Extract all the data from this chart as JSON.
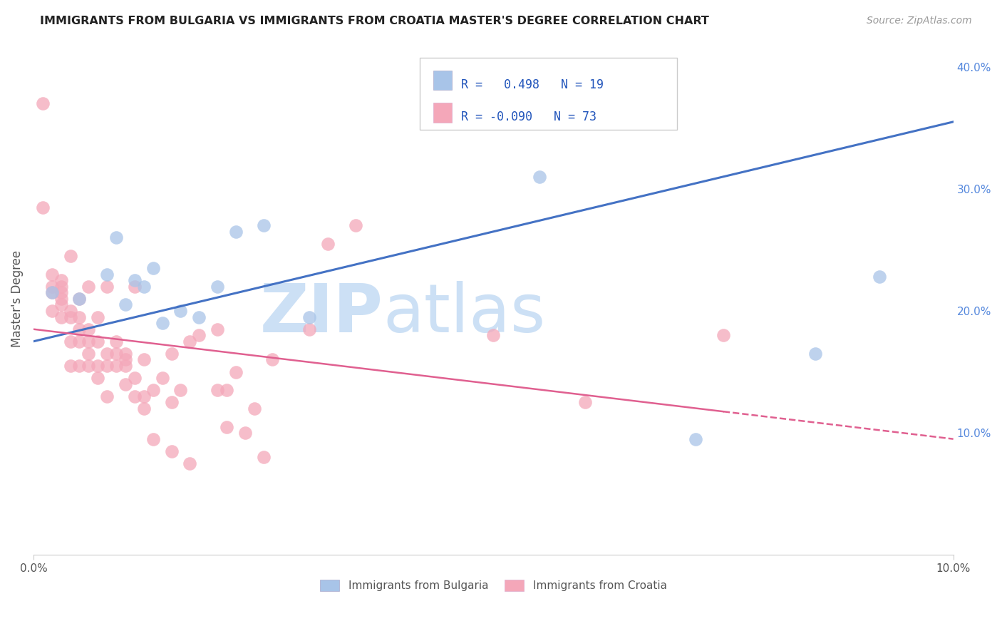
{
  "title": "IMMIGRANTS FROM BULGARIA VS IMMIGRANTS FROM CROATIA MASTER'S DEGREE CORRELATION CHART",
  "source": "Source: ZipAtlas.com",
  "ylabel": "Master's Degree",
  "xlim": [
    0.0,
    0.1
  ],
  "ylim": [
    0.0,
    0.42
  ],
  "xtick_labels": [
    "0.0%",
    "10.0%"
  ],
  "xtick_positions": [
    0.0,
    0.1
  ],
  "ytick_labels_right": [
    "10.0%",
    "20.0%",
    "30.0%",
    "40.0%"
  ],
  "ytick_positions_right": [
    0.1,
    0.2,
    0.3,
    0.4
  ],
  "grid_color": "#dddddd",
  "bg_color": "#ffffff",
  "legend_r_bulgaria": " 0.498",
  "legend_n_bulgaria": "19",
  "legend_r_croatia": "-0.090",
  "legend_n_croatia": "73",
  "color_bulgaria": "#a8c4e8",
  "color_croatia": "#f4a7b9",
  "line_color_bulgaria": "#4472c4",
  "line_color_croatia": "#e06090",
  "watermark_zip": "ZIP",
  "watermark_atlas": "atlas",
  "bulgaria_x": [
    0.002,
    0.005,
    0.008,
    0.009,
    0.01,
    0.011,
    0.012,
    0.013,
    0.014,
    0.016,
    0.018,
    0.02,
    0.022,
    0.025,
    0.03,
    0.055,
    0.072,
    0.085,
    0.092
  ],
  "bulgaria_y": [
    0.215,
    0.21,
    0.23,
    0.26,
    0.205,
    0.225,
    0.22,
    0.235,
    0.19,
    0.2,
    0.195,
    0.22,
    0.265,
    0.27,
    0.195,
    0.31,
    0.095,
    0.165,
    0.228
  ],
  "croatia_x": [
    0.001,
    0.001,
    0.002,
    0.002,
    0.002,
    0.002,
    0.003,
    0.003,
    0.003,
    0.003,
    0.003,
    0.003,
    0.004,
    0.004,
    0.004,
    0.004,
    0.004,
    0.005,
    0.005,
    0.005,
    0.005,
    0.005,
    0.006,
    0.006,
    0.006,
    0.006,
    0.006,
    0.007,
    0.007,
    0.007,
    0.007,
    0.008,
    0.008,
    0.008,
    0.008,
    0.009,
    0.009,
    0.009,
    0.01,
    0.01,
    0.01,
    0.01,
    0.011,
    0.011,
    0.011,
    0.012,
    0.012,
    0.012,
    0.013,
    0.013,
    0.014,
    0.015,
    0.015,
    0.015,
    0.016,
    0.017,
    0.017,
    0.018,
    0.02,
    0.02,
    0.021,
    0.021,
    0.022,
    0.023,
    0.024,
    0.025,
    0.026,
    0.03,
    0.032,
    0.035,
    0.05,
    0.06,
    0.075
  ],
  "croatia_y": [
    0.285,
    0.37,
    0.2,
    0.215,
    0.22,
    0.23,
    0.195,
    0.205,
    0.21,
    0.215,
    0.22,
    0.225,
    0.155,
    0.175,
    0.195,
    0.2,
    0.245,
    0.155,
    0.175,
    0.185,
    0.195,
    0.21,
    0.155,
    0.165,
    0.175,
    0.185,
    0.22,
    0.145,
    0.155,
    0.175,
    0.195,
    0.13,
    0.155,
    0.165,
    0.22,
    0.155,
    0.165,
    0.175,
    0.14,
    0.155,
    0.16,
    0.165,
    0.13,
    0.145,
    0.22,
    0.12,
    0.13,
    0.16,
    0.095,
    0.135,
    0.145,
    0.085,
    0.125,
    0.165,
    0.135,
    0.075,
    0.175,
    0.18,
    0.135,
    0.185,
    0.105,
    0.135,
    0.15,
    0.1,
    0.12,
    0.08,
    0.16,
    0.185,
    0.255,
    0.27,
    0.18,
    0.125,
    0.18
  ],
  "trendline_bulgaria_x0": 0.0,
  "trendline_bulgaria_y0": 0.175,
  "trendline_bulgaria_x1": 0.1,
  "trendline_bulgaria_y1": 0.355,
  "trendline_croatia_x0": 0.0,
  "trendline_croatia_y0": 0.185,
  "trendline_croatia_x1": 0.1,
  "trendline_croatia_y1": 0.095
}
